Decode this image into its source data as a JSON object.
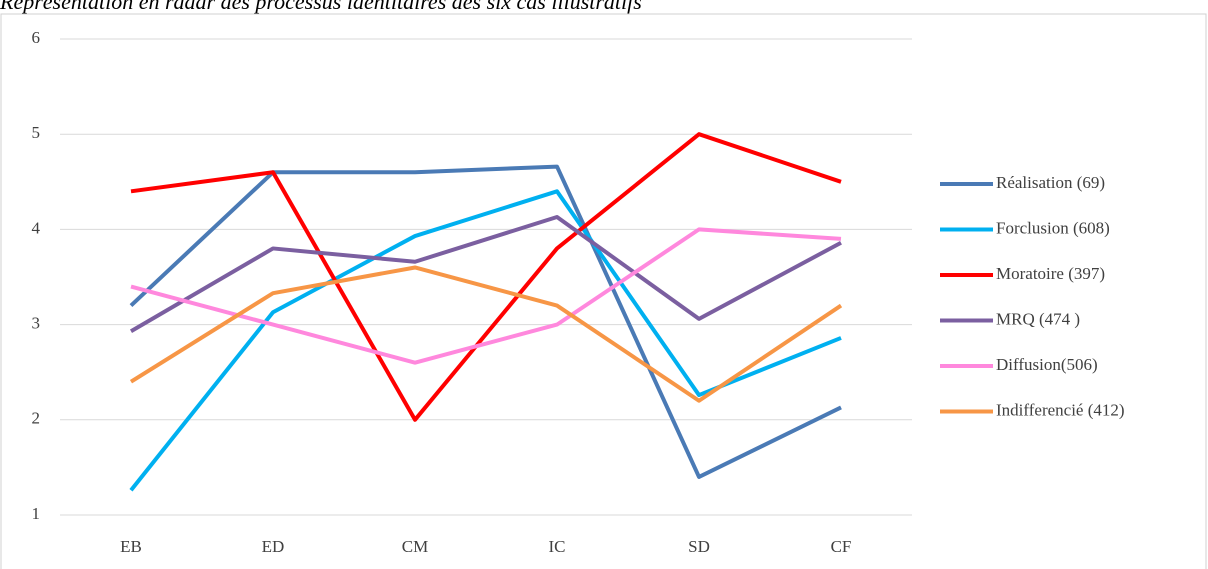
{
  "chart_data": {
    "type": "line",
    "title": "Représentation en radar des processus identitaires des six cas illustratifs",
    "categories": [
      "EB",
      "ED",
      "CM",
      "IC",
      "SD",
      "CF"
    ],
    "series": [
      {
        "name": "Réalisation (69)",
        "color": "#4a7ab5",
        "values": [
          3.2,
          4.6,
          4.6,
          4.66,
          1.4,
          2.13
        ]
      },
      {
        "name": "Forclusion (608)",
        "color": "#00b0f0",
        "values": [
          1.26,
          3.13,
          3.93,
          4.4,
          2.26,
          2.86
        ]
      },
      {
        "name": "Moratoire (397)",
        "color": "#ff0000",
        "values": [
          4.4,
          4.6,
          2.0,
          3.8,
          5.0,
          4.5
        ]
      },
      {
        "name": "MRQ  (474 )",
        "color": "#7b5fa0",
        "values": [
          2.93,
          3.8,
          3.66,
          4.13,
          3.06,
          3.86
        ]
      },
      {
        "name": "Diffusion(506)",
        "color": "#ff88dd",
        "values": [
          3.4,
          3.0,
          2.6,
          3.0,
          4.0,
          3.9
        ]
      },
      {
        "name": "Indifferencié (412)",
        "color": "#f79646",
        "values": [
          2.4,
          3.33,
          3.6,
          3.2,
          2.2,
          3.2
        ]
      }
    ],
    "ylim": [
      1,
      6
    ],
    "yticks": [
      1,
      2,
      3,
      4,
      5,
      6
    ],
    "grid": true,
    "legend": "right"
  }
}
